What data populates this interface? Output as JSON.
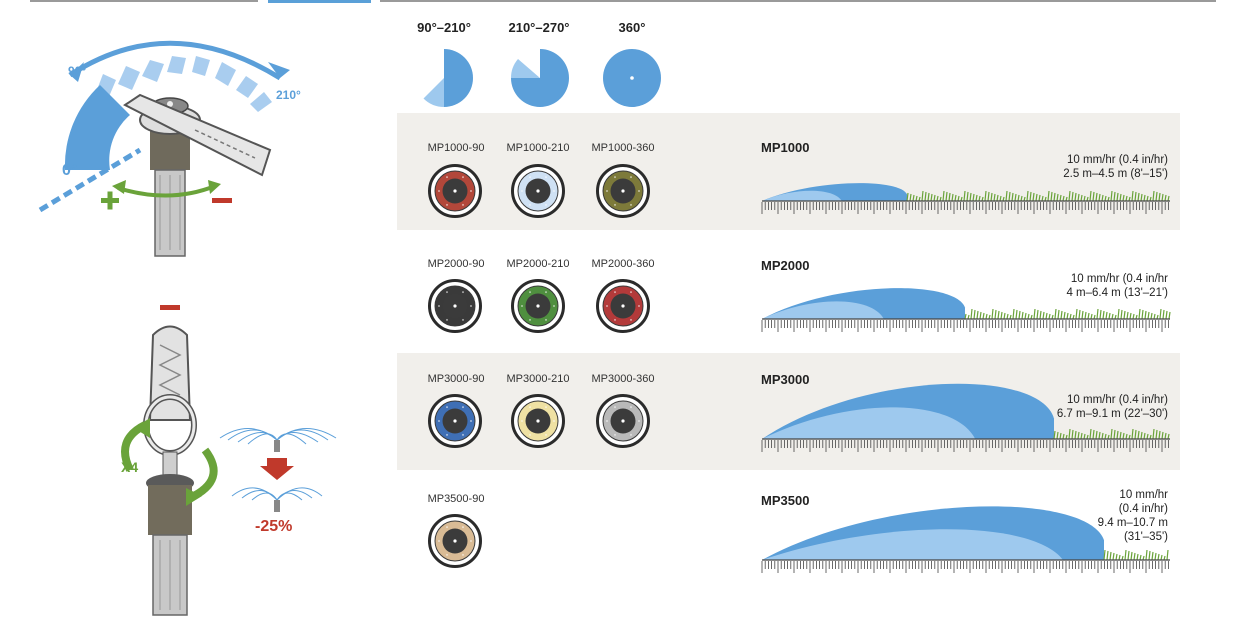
{
  "colors": {
    "blue": "#5b9fd9",
    "light_blue": "#9ec9ee",
    "green": "#6aa33a",
    "red": "#c0392b",
    "band": "#f1efeb"
  },
  "left_panel": {
    "angle_min": "90°",
    "angle_max": "210°",
    "angle_zero": "0°",
    "turns": "X4",
    "reduction": "-25%"
  },
  "arc_options": [
    {
      "label": "90°–210°",
      "icon": "partial-arc-icon"
    },
    {
      "label": "210°–270°",
      "icon": "wide-arc-icon"
    },
    {
      "label": "360°",
      "icon": "full-circle-icon"
    }
  ],
  "series": [
    {
      "name": "MP1000",
      "rate": [
        "10 mm/hr (0.4 in/hr)",
        "2.5 m–4.5 m (8'–15')"
      ],
      "models": [
        {
          "name": "MP1000-90",
          "color": "#b2473a"
        },
        {
          "name": "MP1000-210",
          "color": "#cfe1f4"
        },
        {
          "name": "MP1000-360",
          "color": "#7d7a3a"
        }
      ]
    },
    {
      "name": "MP2000",
      "rate": [
        "10 mm/hr (0.4 in/hr",
        "4 m–6.4 m (13'–21')"
      ],
      "models": [
        {
          "name": "MP2000-90",
          "color": "#3a3a3a"
        },
        {
          "name": "MP2000-210",
          "color": "#4f8f3f"
        },
        {
          "name": "MP2000-360",
          "color": "#b33a3a"
        }
      ]
    },
    {
      "name": "MP3000",
      "rate": [
        "10 mm/hr (0.4 in/hr)",
        "6.7 m–9.1 m (22'–30')"
      ],
      "models": [
        {
          "name": "MP3000-90",
          "color": "#3f6fb5"
        },
        {
          "name": "MP3000-210",
          "color": "#efe1a3"
        },
        {
          "name": "MP3000-360",
          "color": "#b9b9b9"
        }
      ]
    },
    {
      "name": "MP3500",
      "rate": [
        "10 mm/hr",
        "(0.4 in/hr)",
        "9.4 m–10.7 m",
        "(31'–35')"
      ],
      "models": [
        {
          "name": "MP3500-90",
          "color": "#d9bb95"
        }
      ]
    }
  ]
}
